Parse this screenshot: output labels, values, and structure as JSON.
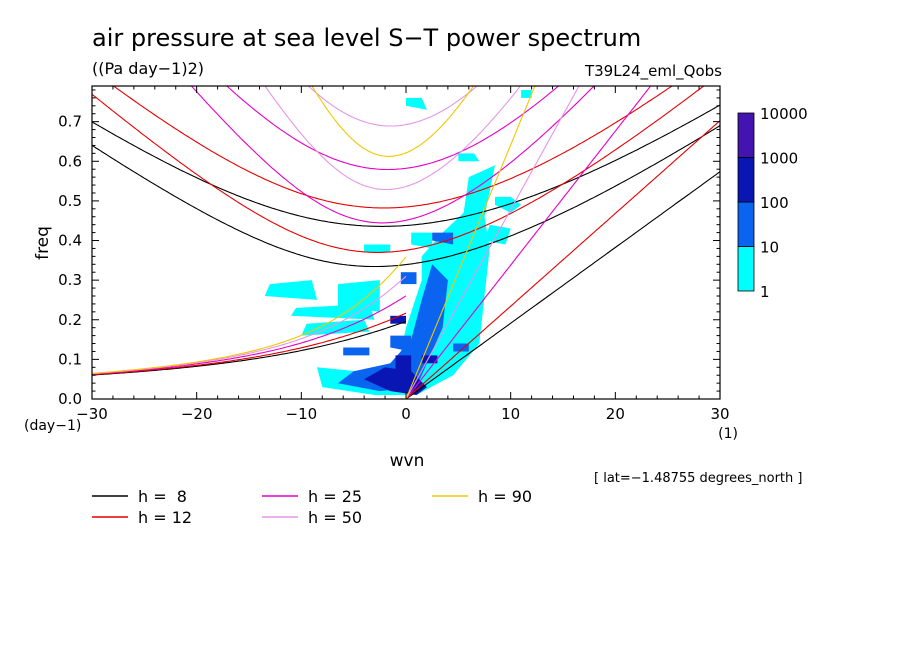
{
  "chart_data": {
    "type": "line",
    "title": "air pressure at sea level S−T power spectrum",
    "units": "((Pa day−1)2)",
    "experiment": "T39L24_eml_Qobs",
    "xlabel": "wvn",
    "ylabel": "freq",
    "x_unit": "(1)",
    "y_unit": "(day−1)",
    "xlim": [
      -30,
      30
    ],
    "ylim": [
      0,
      0.79
    ],
    "x_ticks": [
      -30,
      -20,
      -10,
      0,
      10,
      20,
      30
    ],
    "x_tick_labels": [
      "−30",
      "−20",
      "−10",
      "0",
      "10",
      "20",
      "30"
    ],
    "y_ticks": [
      0.0,
      0.1,
      0.2,
      0.3,
      0.4,
      0.5,
      0.6,
      0.7
    ],
    "y_tick_labels": [
      "0.0",
      "0.1",
      "0.2",
      "0.3",
      "0.4",
      "0.5",
      "0.6",
      "0.7"
    ],
    "annotation": "[ lat=−1.48755 degrees_north ]",
    "colorbar": {
      "levels": [
        "1",
        "10",
        "100",
        "1000",
        "10000"
      ],
      "colors": [
        "#00ffff",
        "#0a64f0",
        "#0a16b4",
        "#4414b0"
      ]
    },
    "series": [
      {
        "name": "h =  8",
        "h": 8,
        "color": "#000000"
      },
      {
        "name": "h = 12",
        "h": 12,
        "color": "#e60000"
      },
      {
        "name": "h = 25",
        "h": 25,
        "color": "#e600c8"
      },
      {
        "name": "h = 50",
        "h": 50,
        "color": "#e696e6"
      },
      {
        "name": "h = 90",
        "h": 90,
        "color": "#f0c800"
      }
    ],
    "contours": {
      "level_1_to_10": [
        [
          [
            -13.5,
            0.26
          ],
          [
            -8.5,
            0.25
          ],
          [
            -9,
            0.3
          ],
          [
            -13,
            0.29
          ]
        ],
        [
          [
            -11,
            0.21
          ],
          [
            -3,
            0.2
          ],
          [
            -3.5,
            0.24
          ],
          [
            -10.5,
            0.23
          ]
        ],
        [
          [
            -10,
            0.16
          ],
          [
            -3.5,
            0.17
          ],
          [
            -4,
            0.2
          ],
          [
            -9.5,
            0.19
          ]
        ],
        [
          [
            -8.5,
            0.08
          ],
          [
            -1,
            0.06
          ],
          [
            0,
            0.18
          ],
          [
            1.5,
            0.3
          ],
          [
            1.5,
            0.36
          ],
          [
            3.5,
            0.42
          ],
          [
            5.5,
            0.47
          ],
          [
            6,
            0.56
          ],
          [
            8.5,
            0.59
          ],
          [
            7.5,
            0.46
          ],
          [
            8,
            0.38
          ],
          [
            7.5,
            0.26
          ],
          [
            7,
            0.14
          ],
          [
            4.5,
            0.06
          ],
          [
            1,
            0.01
          ],
          [
            -3,
            0.01
          ],
          [
            -8,
            0.03
          ]
        ],
        [
          [
            -6.5,
            0.23
          ],
          [
            -2.5,
            0.22
          ],
          [
            -2.5,
            0.3
          ],
          [
            -6.5,
            0.29
          ]
        ],
        [
          [
            0.5,
            0.39
          ],
          [
            2.5,
            0.38
          ],
          [
            2.5,
            0.42
          ],
          [
            0.5,
            0.42
          ]
        ],
        [
          [
            0,
            0.74
          ],
          [
            2,
            0.73
          ],
          [
            1.5,
            0.76
          ],
          [
            0,
            0.76
          ]
        ],
        [
          [
            5,
            0.6
          ],
          [
            7,
            0.6
          ],
          [
            6.5,
            0.62
          ],
          [
            5,
            0.62
          ]
        ],
        [
          [
            8.5,
            0.49
          ],
          [
            10,
            0.47
          ],
          [
            11,
            0.49
          ],
          [
            10,
            0.51
          ],
          [
            8.5,
            0.51
          ]
        ],
        [
          [
            7.5,
            0.4
          ],
          [
            9.5,
            0.39
          ],
          [
            10,
            0.43
          ],
          [
            8,
            0.44
          ]
        ],
        [
          [
            -4,
            0.37
          ],
          [
            -1.5,
            0.37
          ],
          [
            -1.5,
            0.39
          ],
          [
            -4,
            0.39
          ]
        ],
        [
          [
            11,
            0.76
          ],
          [
            12,
            0.76
          ],
          [
            12,
            0.78
          ],
          [
            11,
            0.78
          ]
        ]
      ],
      "level_10_to_100": [
        [
          [
            -6.5,
            0.04
          ],
          [
            -2.5,
            0.02
          ],
          [
            1,
            0.03
          ],
          [
            2,
            0.09
          ],
          [
            3.5,
            0.18
          ],
          [
            4,
            0.3
          ],
          [
            2.5,
            0.34
          ],
          [
            1.5,
            0.25
          ],
          [
            0.5,
            0.15
          ],
          [
            -1.5,
            0.09
          ],
          [
            -5,
            0.07
          ]
        ],
        [
          [
            -6,
            0.11
          ],
          [
            -3.5,
            0.11
          ],
          [
            -3.5,
            0.13
          ],
          [
            -6,
            0.13
          ]
        ],
        [
          [
            -1.5,
            0.13
          ],
          [
            0.5,
            0.12
          ],
          [
            0.5,
            0.16
          ],
          [
            -1.5,
            0.16
          ]
        ],
        [
          [
            -0.5,
            0.29
          ],
          [
            1,
            0.29
          ],
          [
            1,
            0.32
          ],
          [
            -0.5,
            0.32
          ]
        ],
        [
          [
            2.5,
            0.4
          ],
          [
            4.5,
            0.39
          ],
          [
            4.5,
            0.42
          ],
          [
            2.5,
            0.42
          ]
        ],
        [
          [
            4.5,
            0.12
          ],
          [
            6,
            0.12
          ],
          [
            6,
            0.14
          ],
          [
            4.5,
            0.14
          ]
        ]
      ],
      "level_100_to_1000": [
        [
          [
            -4,
            0.05
          ],
          [
            -1.5,
            0.02
          ],
          [
            1,
            0.01
          ],
          [
            2,
            0.03
          ],
          [
            0.5,
            0.07
          ],
          [
            -2,
            0.08
          ]
        ],
        [
          [
            -1,
            0.06
          ],
          [
            0.5,
            0.06
          ],
          [
            0.5,
            0.11
          ],
          [
            -1,
            0.11
          ]
        ],
        [
          [
            -1.5,
            0.19
          ],
          [
            0,
            0.19
          ],
          [
            0,
            0.21
          ],
          [
            -1.5,
            0.21
          ]
        ],
        [
          [
            1.5,
            0.09
          ],
          [
            3,
            0.09
          ],
          [
            3,
            0.11
          ],
          [
            1.5,
            0.11
          ]
        ]
      ]
    }
  }
}
